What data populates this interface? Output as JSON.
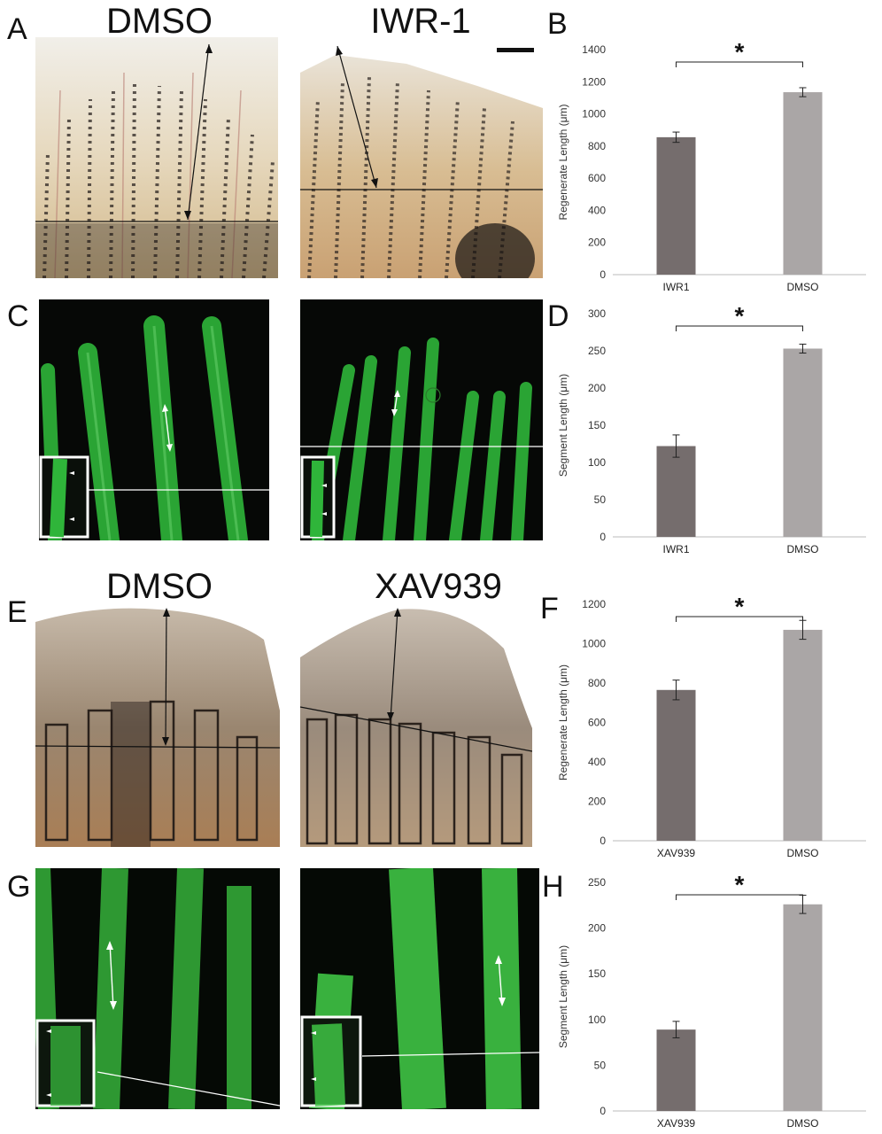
{
  "panel_letters": {
    "A": "A",
    "B": "B",
    "C": "C",
    "D": "D",
    "E": "E",
    "F": "F",
    "G": "G",
    "H": "H"
  },
  "conditions": {
    "dmso_top": "DMSO",
    "iwr1": "IWR-1",
    "dmso_bottom": "DMSO",
    "xav939": "XAV939"
  },
  "colors": {
    "treated_bar": "#756d6d",
    "control_bar": "#aaa6a6",
    "fluor_green": "#2fd43a",
    "brightfield": "#d8c6a4"
  },
  "chart_data": [
    {
      "id": "B",
      "type": "bar",
      "categories": [
        "IWR1",
        "DMSO"
      ],
      "values": [
        855,
        1135
      ],
      "errors": [
        32,
        28
      ],
      "ylabel": "Regenerate Length (μm)",
      "ylim": [
        0,
        1400
      ],
      "yticks": [
        0,
        200,
        400,
        600,
        800,
        1000,
        1200,
        1400
      ],
      "significance": "*",
      "grid": false
    },
    {
      "id": "D",
      "type": "bar",
      "categories": [
        "IWR1",
        "DMSO"
      ],
      "values": [
        122,
        253
      ],
      "errors": [
        15,
        6
      ],
      "ylabel": "Segment Length (μm)",
      "ylim": [
        0,
        300
      ],
      "yticks": [
        0,
        50,
        100,
        150,
        200,
        250,
        300
      ],
      "significance": "*",
      "grid": false
    },
    {
      "id": "F",
      "type": "bar",
      "categories": [
        "XAV939",
        "DMSO"
      ],
      "values": [
        765,
        1070
      ],
      "errors": [
        50,
        48
      ],
      "ylabel": "Regenerate Length (μm)",
      "ylim": [
        0,
        1200
      ],
      "yticks": [
        0,
        200,
        400,
        600,
        800,
        1000,
        1200
      ],
      "significance": "*",
      "grid": false
    },
    {
      "id": "H",
      "type": "bar",
      "categories": [
        "XAV939",
        "DMSO"
      ],
      "values": [
        89,
        226
      ],
      "errors": [
        9,
        10
      ],
      "ylabel": "Segment Length (μm)",
      "ylim": [
        0,
        250
      ],
      "yticks": [
        0,
        50,
        100,
        150,
        200,
        250
      ],
      "significance": "*",
      "grid": false
    }
  ]
}
